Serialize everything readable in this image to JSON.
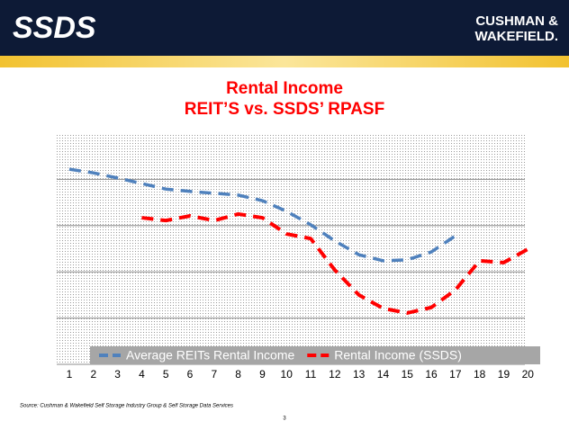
{
  "header": {
    "logo": "SSDS",
    "brand_line1": "CUSHMAN &",
    "brand_line2": "WAKEFIELD."
  },
  "chart_data": {
    "type": "line",
    "title": [
      "Rental Income",
      "REIT’S vs. SSDS’ RPASF"
    ],
    "categories": [
      "1",
      "2",
      "3",
      "4",
      "5",
      "6",
      "7",
      "8",
      "9",
      "10",
      "11",
      "12",
      "13",
      "14",
      "15",
      "16",
      "17",
      "18",
      "19",
      "20"
    ],
    "series": [
      {
        "name": "Average REITs Rental Income",
        "color": "#4f81bd",
        "values": [
          4.22,
          4.14,
          4.03,
          3.91,
          3.79,
          3.74,
          3.7,
          3.66,
          3.54,
          3.31,
          3.02,
          2.67,
          2.37,
          2.24,
          2.26,
          2.43,
          2.78,
          null,
          null,
          null
        ]
      },
      {
        "name": "Rental Income (SSDS)",
        "color": "#ff0000",
        "values": [
          null,
          null,
          null,
          3.17,
          3.11,
          3.21,
          3.11,
          3.25,
          3.17,
          2.82,
          2.72,
          2.04,
          1.5,
          1.21,
          1.11,
          1.23,
          1.61,
          2.24,
          2.2,
          2.49
        ]
      }
    ],
    "ylim": [
      0,
      5
    ],
    "yticks": [
      1,
      2,
      3,
      4
    ],
    "grid": true,
    "legend": "bottom"
  },
  "footer": {
    "source": "Source: Cushman & Wakefield Self Storage Industry Group & Self Storage Data Services",
    "page": "3"
  }
}
